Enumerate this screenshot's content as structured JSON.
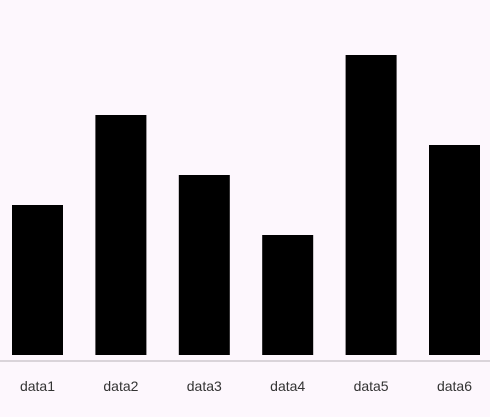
{
  "chart_data": {
    "type": "bar",
    "categories": [
      "data1",
      "data2",
      "data3",
      "data4",
      "data5",
      "data6"
    ],
    "values": [
      50,
      80,
      60,
      40,
      100,
      70
    ],
    "ylim": [
      0,
      100
    ],
    "title": "",
    "xlabel": "",
    "ylabel": "",
    "grid": false,
    "legend": "none",
    "colors": {
      "bar": "#000000",
      "axis": "#cfc9cf",
      "background": "#fdf7fd",
      "text": "#333333"
    }
  }
}
